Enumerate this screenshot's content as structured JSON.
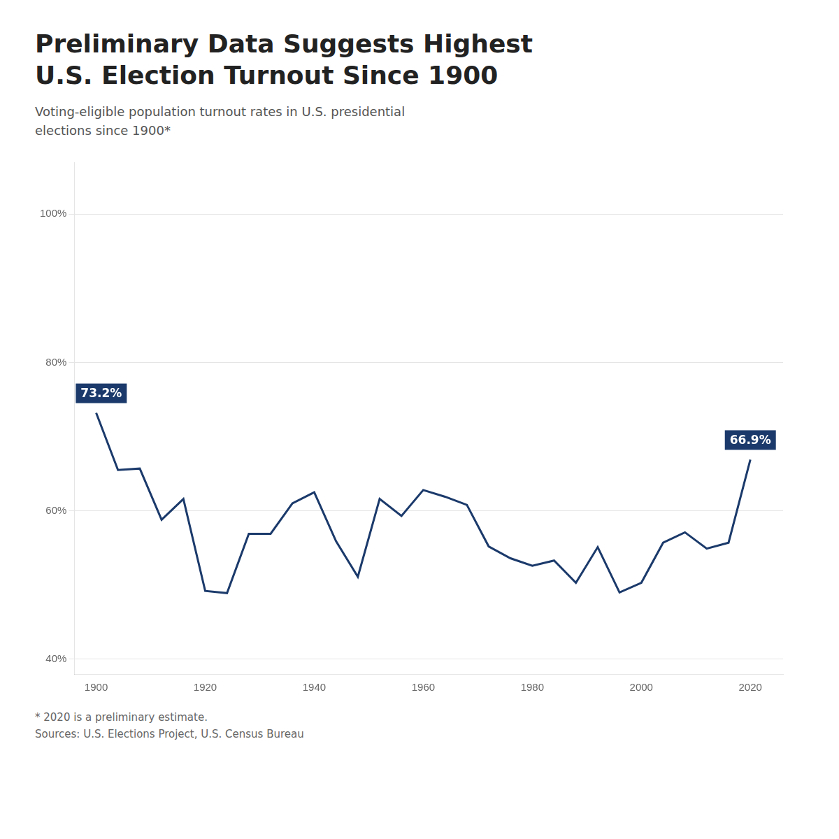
{
  "chart_data": {
    "type": "line",
    "title": "Preliminary Data Suggests Highest\nU.S. Election Turnout Since 1900",
    "subtitle": "Voting-eligible population turnout rates in U.S. presidential\nelections since 1900*",
    "x": [
      1900,
      1904,
      1908,
      1912,
      1916,
      1920,
      1924,
      1928,
      1932,
      1936,
      1940,
      1944,
      1948,
      1952,
      1956,
      1960,
      1964,
      1968,
      1972,
      1976,
      1980,
      1984,
      1988,
      1992,
      1996,
      2000,
      2004,
      2008,
      2012,
      2016,
      2020
    ],
    "values": [
      73.2,
      65.5,
      65.7,
      58.8,
      61.6,
      49.2,
      48.9,
      56.9,
      56.9,
      61.0,
      62.5,
      55.9,
      51.1,
      61.6,
      59.3,
      62.8,
      61.9,
      60.8,
      55.2,
      53.6,
      52.6,
      53.3,
      50.3,
      55.1,
      49.0,
      50.3,
      55.7,
      57.1,
      54.9,
      55.7,
      66.9
    ],
    "color": "#1B3A6B",
    "xlim": [
      1896,
      2026
    ],
    "xticks": [
      1900,
      1920,
      1940,
      1960,
      1980,
      2000,
      2020
    ],
    "ylim": [
      38,
      107
    ],
    "yticks": [
      {
        "value": 40,
        "label": "40%"
      },
      {
        "value": 60,
        "label": "60%"
      },
      {
        "value": 80,
        "label": "80%"
      },
      {
        "value": 100,
        "label": "100%"
      }
    ],
    "grid": true,
    "annotations": [
      {
        "x": 1900,
        "y": 73.2,
        "text": "73.2%"
      },
      {
        "x": 2020,
        "y": 66.9,
        "text": "66.9%"
      }
    ],
    "notes": [
      "* 2020 is a preliminary estimate.",
      "Sources: U.S. Elections Project, U.S. Census Bureau"
    ]
  }
}
